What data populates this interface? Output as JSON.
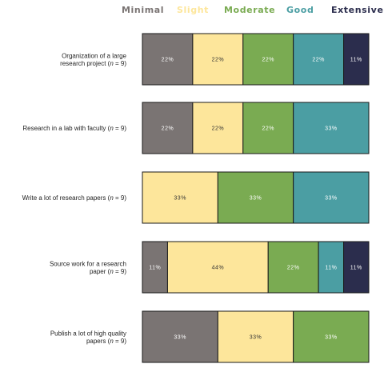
{
  "chart_data": {
    "type": "bar",
    "orientation": "horizontal",
    "stacked": true,
    "normalized": true,
    "legend_position": "top",
    "grid": false,
    "title": "",
    "xlabel": "",
    "ylabel": "",
    "xlim": [
      0,
      100
    ],
    "series": [
      {
        "name": "Minimal",
        "color": "#7a7473",
        "label_color": "#ffffff"
      },
      {
        "name": "Slight",
        "color": "#fde69b",
        "label_color": "#333333"
      },
      {
        "name": "Moderate",
        "color": "#7aab52",
        "label_color": "#ffffff"
      },
      {
        "name": "Good",
        "color": "#4b9ea3",
        "label_color": "#ffffff"
      },
      {
        "name": "Extensive",
        "color": "#2b2d4d",
        "label_color": "#ffffff"
      }
    ],
    "categories": [
      {
        "lines": [
          "Organization of a large",
          "research project (",
          "n",
          " = 9)"
        ],
        "line1": "Organization of a large",
        "line2_pre": "research project (",
        "n": "n",
        "line2_post": " = 9)",
        "values": [
          22,
          22,
          22,
          22,
          11
        ],
        "labels": [
          "22%",
          "22%",
          "22%",
          "22%",
          "11%"
        ]
      },
      {
        "line1": "",
        "line2_pre": "Research in a lab with faculty (",
        "n": "n",
        "line2_post": " = 9)",
        "values": [
          22,
          22,
          22,
          33,
          0
        ],
        "labels": [
          "22%",
          "22%",
          "22%",
          "33%",
          ""
        ]
      },
      {
        "line1": "",
        "line2_pre": "Write a lot of research papers (",
        "n": "n",
        "line2_post": " = 9)",
        "values": [
          0,
          33,
          33,
          33,
          0
        ],
        "labels": [
          "",
          "33%",
          "33%",
          "33%",
          ""
        ]
      },
      {
        "line1": "Source work for a research",
        "line2_pre": "paper (",
        "n": "n",
        "line2_post": " = 9)",
        "values": [
          11,
          44,
          22,
          11,
          11
        ],
        "labels": [
          "11%",
          "44%",
          "22%",
          "11%",
          "11%"
        ]
      },
      {
        "line1": "Publish a lot of high quality",
        "line2_pre": "papers (",
        "n": "n",
        "line2_post": " = 9)",
        "values": [
          33,
          33,
          33,
          0,
          0
        ],
        "labels": [
          "33%",
          "33%",
          "33%",
          "",
          ""
        ]
      }
    ]
  }
}
